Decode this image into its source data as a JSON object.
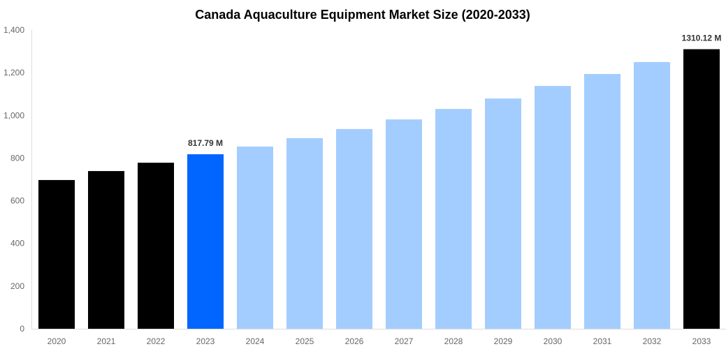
{
  "chart_data": {
    "type": "bar",
    "title": "Canada Aquaculture Equipment Market Size (2020-2033)",
    "xlabel": "",
    "ylabel": "",
    "ylim": [
      0,
      1400
    ],
    "yticks": [
      0,
      200,
      400,
      600,
      800,
      1000,
      1200,
      1400
    ],
    "ytick_labels": [
      "0",
      "200",
      "400",
      "600",
      "800",
      "1,000",
      "1,200",
      "1,400"
    ],
    "grid": false,
    "categories": [
      "2020",
      "2021",
      "2022",
      "2023",
      "2024",
      "2025",
      "2026",
      "2027",
      "2028",
      "2029",
      "2030",
      "2031",
      "2032",
      "2033"
    ],
    "values": [
      697,
      739,
      778,
      817.79,
      854,
      893,
      936,
      981,
      1030,
      1079,
      1138,
      1194,
      1250,
      1310.12
    ],
    "bar_colors": [
      "#000000",
      "#000000",
      "#000000",
      "#0066ff",
      "#a3cdfe",
      "#a3cdfe",
      "#a3cdfe",
      "#a3cdfe",
      "#a3cdfe",
      "#a3cdfe",
      "#a3cdfe",
      "#a3cdfe",
      "#a3cdfe",
      "#000000"
    ],
    "data_labels": [
      {
        "category": "2023",
        "text": "817.79 M"
      },
      {
        "category": "2033",
        "text": "1310.12 M"
      }
    ]
  }
}
